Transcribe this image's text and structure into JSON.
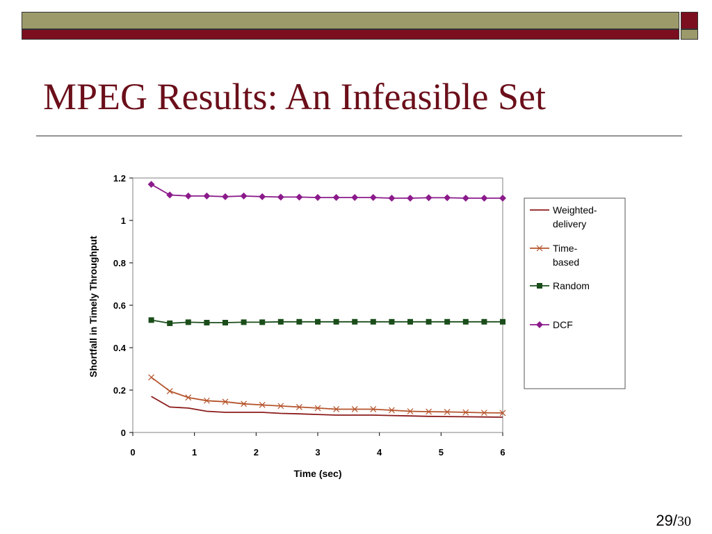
{
  "slide": {
    "title": "MPEG Results: An Infeasible Set",
    "page_current": "29/",
    "page_total": "30",
    "colors": {
      "olive": "#9c9a6b",
      "maroon": "#7b0f1f",
      "title": "#6b0f1a"
    }
  },
  "chart_data": {
    "type": "line",
    "title": "",
    "xlabel": "Time (sec)",
    "ylabel": "Shortfall in Timely Throughput",
    "xlim": [
      0,
      6
    ],
    "ylim": [
      0,
      1.2
    ],
    "xticks": [
      "0",
      "1",
      "2",
      "3",
      "4",
      "5",
      "6"
    ],
    "yticks": [
      "0",
      "0.2",
      "0.4",
      "0.6",
      "0.8",
      "1",
      "1.2"
    ],
    "grid": false,
    "legend_position": "right",
    "x": [
      0.3,
      0.6,
      0.9,
      1.2,
      1.5,
      1.8,
      2.1,
      2.4,
      2.7,
      3.0,
      3.3,
      3.6,
      3.9,
      4.2,
      4.5,
      4.8,
      5.1,
      5.4,
      5.7,
      6.0
    ],
    "series": [
      {
        "name": "Weighted-delivery",
        "color": "#8b1a1a",
        "marker": "none",
        "values": [
          0.17,
          0.12,
          0.115,
          0.1,
          0.095,
          0.095,
          0.095,
          0.09,
          0.088,
          0.085,
          0.082,
          0.082,
          0.082,
          0.08,
          0.078,
          0.076,
          0.075,
          0.074,
          0.073,
          0.072
        ]
      },
      {
        "name": "Time-based",
        "color": "#b5532a",
        "marker": "x",
        "values": [
          0.26,
          0.195,
          0.165,
          0.15,
          0.145,
          0.135,
          0.13,
          0.125,
          0.12,
          0.115,
          0.11,
          0.11,
          0.11,
          0.105,
          0.1,
          0.098,
          0.097,
          0.095,
          0.093,
          0.092
        ]
      },
      {
        "name": "Random",
        "color": "#1a4d1a",
        "marker": "square",
        "values": [
          0.53,
          0.515,
          0.52,
          0.518,
          0.518,
          0.52,
          0.52,
          0.522,
          0.522,
          0.522,
          0.522,
          0.522,
          0.522,
          0.522,
          0.522,
          0.522,
          0.522,
          0.522,
          0.522,
          0.522
        ]
      },
      {
        "name": "DCF",
        "color": "#8b1a8b",
        "marker": "diamond",
        "values": [
          1.17,
          1.12,
          1.115,
          1.115,
          1.112,
          1.115,
          1.112,
          1.11,
          1.11,
          1.108,
          1.108,
          1.108,
          1.108,
          1.105,
          1.105,
          1.107,
          1.107,
          1.105,
          1.105,
          1.105
        ]
      }
    ]
  }
}
